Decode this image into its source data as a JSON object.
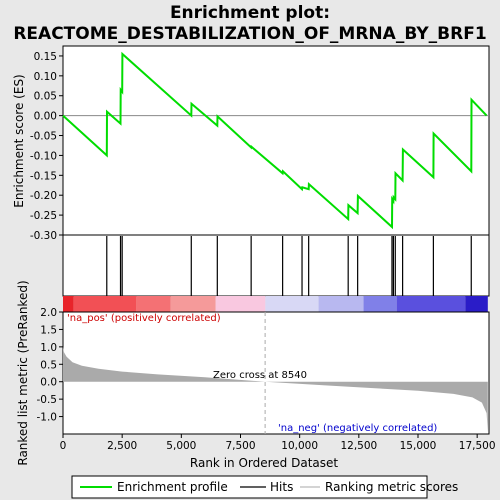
{
  "chart_data": {
    "type": "line",
    "title_line1": "Enrichment plot:",
    "title_line2": "REACTOME_DESTABILIZATION_OF_MRNA_BY_BRF1",
    "top_panel": {
      "ylabel": "Enrichment score (ES)",
      "ylim": [
        -0.3,
        0.175
      ],
      "yticks": [
        -0.3,
        -0.25,
        -0.2,
        -0.15,
        -0.1,
        -0.05,
        0.0,
        0.05,
        0.1,
        0.15
      ],
      "ytick_labels": [
        "-0.30",
        "-0.25",
        "-0.20",
        "-0.15",
        "-0.10",
        "-0.05",
        "0.00",
        "0.05",
        "0.10",
        "0.15"
      ],
      "series": [
        {
          "name": "Enrichment profile",
          "color": "#00dd00",
          "points": [
            [
              0,
              0.0
            ],
            [
              1850,
              -0.1
            ],
            [
              1860,
              0.01
            ],
            [
              2430,
              -0.02
            ],
            [
              2440,
              0.065
            ],
            [
              2500,
              0.06
            ],
            [
              2510,
              0.155
            ],
            [
              5420,
              0.0
            ],
            [
              5430,
              0.03
            ],
            [
              6520,
              -0.025
            ],
            [
              6530,
              -0.002
            ],
            [
              7950,
              -0.08
            ],
            [
              7960,
              -0.078
            ],
            [
              9280,
              -0.145
            ],
            [
              9290,
              -0.14
            ],
            [
              10100,
              -0.185
            ],
            [
              10110,
              -0.18
            ],
            [
              10380,
              -0.185
            ],
            [
              10390,
              -0.172
            ],
            [
              12050,
              -0.26
            ],
            [
              12060,
              -0.225
            ],
            [
              12450,
              -0.245
            ],
            [
              12460,
              -0.202
            ],
            [
              13900,
              -0.28
            ],
            [
              13910,
              -0.21
            ],
            [
              13960,
              -0.215
            ],
            [
              13970,
              -0.205
            ],
            [
              14040,
              -0.21
            ],
            [
              14050,
              -0.145
            ],
            [
              14350,
              -0.163
            ],
            [
              14360,
              -0.085
            ],
            [
              15650,
              -0.155
            ],
            [
              15660,
              -0.045
            ],
            [
              17250,
              -0.14
            ],
            [
              17260,
              0.04
            ],
            [
              17900,
              0.0
            ]
          ]
        }
      ]
    },
    "hits": [
      1850,
      2430,
      2500,
      5420,
      6520,
      7950,
      9280,
      10100,
      10380,
      12050,
      12450,
      13900,
      13960,
      14040,
      14350,
      15650,
      17250
    ],
    "color_bar": [
      {
        "from": 0,
        "to": 450,
        "color": "#e8242a"
      },
      {
        "from": 450,
        "to": 3100,
        "color": "#f25055"
      },
      {
        "from": 3100,
        "to": 4550,
        "color": "#f47174"
      },
      {
        "from": 4550,
        "to": 6450,
        "color": "#f59a9a"
      },
      {
        "from": 6450,
        "to": 8550,
        "color": "#f9c8e0"
      },
      {
        "from": 8550,
        "to": 10800,
        "color": "#d8d8f5"
      },
      {
        "from": 10800,
        "to": 12700,
        "color": "#b8b8f0"
      },
      {
        "from": 12700,
        "to": 14100,
        "color": "#8080e8"
      },
      {
        "from": 14100,
        "to": 17000,
        "color": "#5a50de"
      },
      {
        "from": 17000,
        "to": 17950,
        "color": "#2a1cc8"
      }
    ],
    "bottom_panel": {
      "ylabel": "Ranked list metric (PreRanked)",
      "ylim": [
        -1.5,
        2.0
      ],
      "yticks": [
        -1.0,
        -0.5,
        0.0,
        0.5,
        1.0,
        1.5,
        2.0
      ],
      "ytick_labels": [
        "-1.0",
        "-0.5",
        "0.0",
        "0.5",
        "1.0",
        "1.5",
        "2.0"
      ],
      "metric_curve": [
        [
          0,
          1.0
        ],
        [
          40,
          0.85
        ],
        [
          150,
          0.72
        ],
        [
          400,
          0.56
        ],
        [
          800,
          0.46
        ],
        [
          1500,
          0.37
        ],
        [
          2500,
          0.29
        ],
        [
          4000,
          0.21
        ],
        [
          6000,
          0.13
        ],
        [
          8540,
          0.0
        ],
        [
          11000,
          -0.1
        ],
        [
          13000,
          -0.18
        ],
        [
          15000,
          -0.26
        ],
        [
          16500,
          -0.35
        ],
        [
          17300,
          -0.45
        ],
        [
          17700,
          -0.6
        ],
        [
          17900,
          -0.9
        ],
        [
          17950,
          -1.45
        ]
      ],
      "fill_color": "#aaaaaa",
      "zero_cross_label": "Zero cross at 8540",
      "zero_cross": 8540,
      "pos_label": "'na_pos' (positively correlated)",
      "neg_label": "'na_neg' (negatively correlated)"
    },
    "xaxis": {
      "label": "Rank in Ordered Dataset",
      "xlim": [
        0,
        18000
      ],
      "ticks": [
        0,
        2500,
        5000,
        7500,
        10000,
        12500,
        15000,
        17500
      ],
      "tick_labels": [
        "0",
        "2,500",
        "5,000",
        "7,500",
        "10,000",
        "12,500",
        "15,000",
        "17,500"
      ]
    },
    "legend": {
      "placement": "bottom",
      "items": [
        {
          "label": "Enrichment profile",
          "color": "#00dd00"
        },
        {
          "label": "Hits",
          "color": "#000000"
        },
        {
          "label": "Ranking metric scores",
          "color": "#aaaaaa"
        }
      ]
    }
  }
}
